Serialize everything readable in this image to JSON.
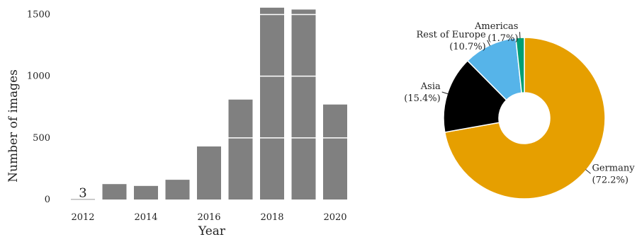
{
  "chart_data": [
    {
      "type": "bar",
      "xlabel": "Year",
      "ylabel": "Number of images",
      "categories": [
        "2012",
        "2013",
        "2014",
        "2015",
        "2016",
        "2017",
        "2018",
        "2019",
        "2020"
      ],
      "values": [
        3,
        125,
        110,
        160,
        430,
        810,
        1555,
        1540,
        770
      ],
      "x_tick_labels": [
        "2012",
        "2014",
        "2016",
        "2018",
        "2020"
      ],
      "y_tick_labels": [
        "0",
        "500",
        "1000",
        "1500"
      ],
      "ylim": [
        0,
        1600
      ],
      "bar_color": "#808080",
      "gridlines": [
        500,
        1000,
        1500
      ],
      "data_labels": [
        {
          "category": "2012",
          "text": "3"
        }
      ],
      "grid": false
    },
    {
      "type": "pie",
      "donut": true,
      "slices": [
        {
          "label": "Germany",
          "value": 72.2,
          "pct_label": "(72.2%)",
          "color": "#E69F00"
        },
        {
          "label": "Asia",
          "value": 15.4,
          "pct_label": "(15.4%)",
          "color": "#000000"
        },
        {
          "label": "Rest of Europe",
          "value": 10.7,
          "pct_label": "(10.7%)",
          "color": "#56B4E9"
        },
        {
          "label": "Americas",
          "value": 1.7,
          "pct_label": "(1.7%)",
          "color": "#009E73"
        }
      ]
    }
  ]
}
